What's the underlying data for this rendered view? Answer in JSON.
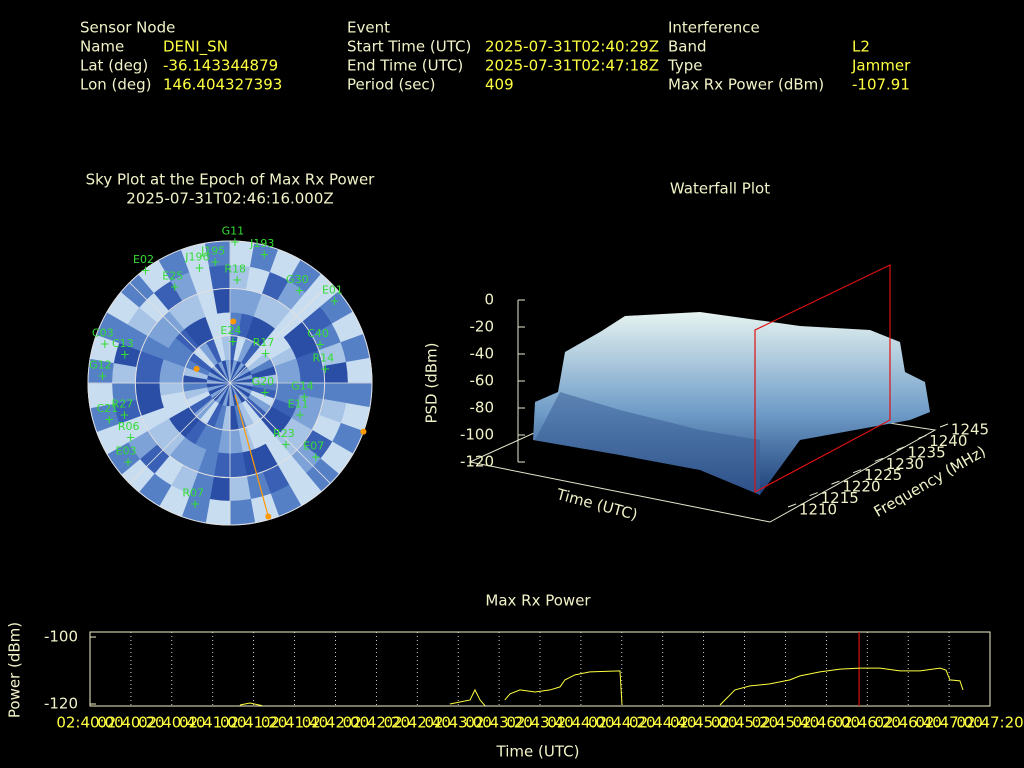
{
  "header": {
    "sensor": {
      "title": "Sensor Node",
      "rows": [
        [
          "Name",
          "DENI_SN"
        ],
        [
          "Lat (deg)",
          "-36.143344879"
        ],
        [
          "Lon (deg)",
          "146.404327393"
        ]
      ]
    },
    "event": {
      "title": "Event",
      "rows": [
        [
          "Start Time (UTC)",
          "2025-07-31T02:40:29Z"
        ],
        [
          "End Time (UTC)",
          "2025-07-31T02:47:18Z"
        ],
        [
          "Period (sec)",
          "409"
        ]
      ]
    },
    "interference": {
      "title": "Interference",
      "rows": [
        [
          "Band",
          "L2"
        ],
        [
          "Type",
          "Jammer"
        ],
        [
          "Max Rx Power (dBm)",
          "-107.91"
        ]
      ]
    }
  },
  "chart_data": [
    {
      "type": "polar",
      "title": "Sky Plot at the Epoch of Max Rx Power",
      "subtitle": "2025-07-31T02:46:16.000Z",
      "color": "#33dd33",
      "grid": true,
      "satellites": [
        {
          "label": "G11",
          "az": 2,
          "el": 1
        },
        {
          "label": "J193",
          "az": 15,
          "el": 6
        },
        {
          "label": "J195",
          "az": 353,
          "el": 13
        },
        {
          "label": "J196",
          "az": 345,
          "el": 15
        },
        {
          "label": "E02",
          "az": 323,
          "el": 1
        },
        {
          "label": "R18",
          "az": 4,
          "el": 25
        },
        {
          "label": "E25",
          "az": 330,
          "el": 20
        },
        {
          "label": "G30",
          "az": 37,
          "el": 17
        },
        {
          "label": "E01",
          "az": 52,
          "el": 6
        },
        {
          "label": "C40",
          "az": 67,
          "el": 28
        },
        {
          "label": "R17",
          "az": 51,
          "el": 61
        },
        {
          "label": "E24",
          "az": 4,
          "el": 64
        },
        {
          "label": "R14",
          "az": 82,
          "el": 29
        },
        {
          "label": "G12",
          "az": 273,
          "el": 9
        },
        {
          "label": "C03",
          "az": 287,
          "el": 7
        },
        {
          "label": "C13",
          "az": 285,
          "el": 21
        },
        {
          "label": "R27",
          "az": 253,
          "el": 20
        },
        {
          "label": "C21",
          "az": 253,
          "el": 10
        },
        {
          "label": "R06",
          "az": 241,
          "el": 18
        },
        {
          "label": "E11",
          "az": 115,
          "el": 41
        },
        {
          "label": "G14",
          "az": 101,
          "el": 42
        },
        {
          "label": "R23",
          "az": 138,
          "el": 37
        },
        {
          "label": "E07",
          "az": 131,
          "el": 18
        },
        {
          "label": "E03",
          "az": 232,
          "el": 8
        },
        {
          "label": "R07",
          "az": 196,
          "el": 10
        },
        {
          "label": "G20",
          "az": 106,
          "el": 67
        }
      ],
      "jammer_color": "#ff9900",
      "jammer_points": [
        {
          "az": 3,
          "el": 51
        },
        {
          "az": 293,
          "el": 67
        },
        {
          "az": 110,
          "el": 0
        },
        {
          "az": 164,
          "el": 2
        }
      ]
    },
    {
      "type": "surface",
      "title": "Waterfall Plot",
      "zlabel": "PSD (dBm)",
      "zlim": [
        -120,
        0
      ],
      "zticks": [
        0,
        -20,
        -40,
        -60,
        -80,
        -100,
        -120
      ],
      "ylabel": "Frequency (MHz)",
      "ylim": [
        1210,
        1245
      ],
      "yticks": [
        1210,
        1215,
        1220,
        1225,
        1230,
        1235,
        1240,
        1245
      ],
      "xlabel": "Time (UTC)"
    },
    {
      "type": "line",
      "title": "Max Rx Power",
      "xlabel": "Time (UTC)",
      "ylabel": "Power (dBm)",
      "color": "#ffff40",
      "grid": true,
      "xlim": [
        0,
        440
      ],
      "ylim": [
        -120.6,
        -98.5
      ],
      "yticks": [
        -100,
        -120
      ],
      "xticks": [
        {
          "value": 0,
          "label": "02:40:00"
        },
        {
          "value": 20,
          "label": "02:40:20"
        },
        {
          "value": 40,
          "label": "02:40:40"
        },
        {
          "value": 60,
          "label": "02:41:00"
        },
        {
          "value": 80,
          "label": "02:41:20"
        },
        {
          "value": 100,
          "label": "02:41:40"
        },
        {
          "value": 120,
          "label": "02:42:00"
        },
        {
          "value": 140,
          "label": "02:42:20"
        },
        {
          "value": 160,
          "label": "02:42:40"
        },
        {
          "value": 180,
          "label": "02:43:00"
        },
        {
          "value": 200,
          "label": "02:43:20"
        },
        {
          "value": 220,
          "label": "02:43:40"
        },
        {
          "value": 240,
          "label": "02:44:00"
        },
        {
          "value": 260,
          "label": "02:44:20"
        },
        {
          "value": 280,
          "label": "02:44:40"
        },
        {
          "value": 300,
          "label": "02:45:00"
        },
        {
          "value": 320,
          "label": "02:45:20"
        },
        {
          "value": 340,
          "label": "02:45:40"
        },
        {
          "value": 360,
          "label": "02:46:00"
        },
        {
          "value": 380,
          "label": "02:46:20"
        },
        {
          "value": 400,
          "label": "02:46:40"
        },
        {
          "value": 420,
          "label": "02:47:00"
        },
        {
          "value": 440,
          "label": "02:47:20"
        }
      ],
      "x": [
        73.3,
        78.2,
        84.1,
        130,
        176,
        185.8,
        188.2,
        190.7,
        193.1,
        198,
        202.8,
        205.3,
        210.2,
        217.6,
        224.9,
        229.8,
        232.2,
        237.1,
        244.4,
        259.1,
        260.1,
        284,
        308,
        315.3,
        322.7,
        332.4,
        342.2,
        347.1,
        356.9,
        366.7,
        376.4,
        386.2,
        396,
        405.8,
        415.6,
        418.5,
        420.4,
        425.3,
        426.8
      ],
      "values": [
        -120.3,
        -119.7,
        -120.5,
        null,
        -120,
        -118.8,
        -115.8,
        -118.8,
        -120.5,
        null,
        -118.8,
        -117,
        -115.8,
        -116.4,
        -115.8,
        -114.9,
        -112.8,
        -111.3,
        -110.4,
        -110.1,
        -120.3,
        null,
        -120.3,
        -115.8,
        -114.6,
        -114,
        -112.8,
        -111.6,
        -110.4,
        -109.6,
        -109.3,
        -109.3,
        -110.1,
        -110.1,
        -109.3,
        -109.9,
        -112.8,
        -113.1,
        -115.8
      ],
      "marker_x": 376,
      "marker_color": "#dd1111"
    }
  ]
}
